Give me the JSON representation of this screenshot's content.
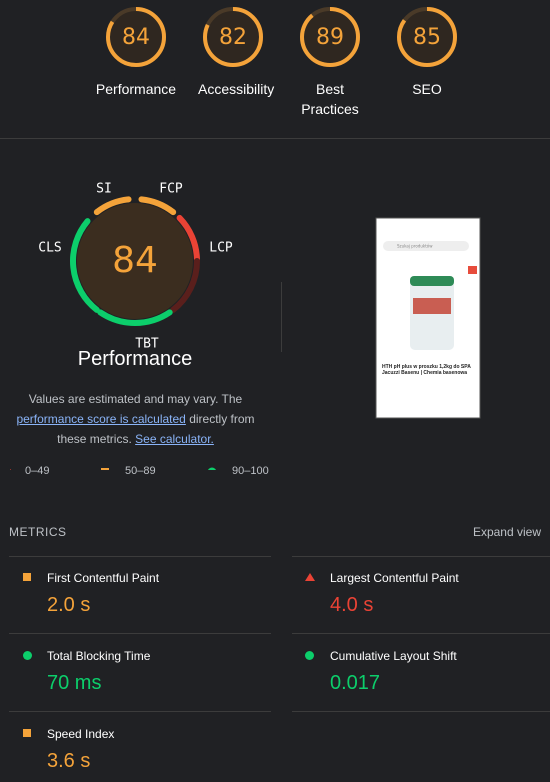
{
  "top_scores": [
    {
      "label": "Performance",
      "score": 84
    },
    {
      "label": "Accessibility",
      "score": 82
    },
    {
      "label": "Best Practices",
      "score": 89
    },
    {
      "label": "SEO",
      "score": 85
    }
  ],
  "gauge": {
    "score": 84,
    "title": "Performance",
    "labels": {
      "si": "SI",
      "fcp": "FCP",
      "lcp": "LCP",
      "cls": "CLS",
      "tbt": "TBT"
    }
  },
  "note": {
    "text1": "Values are estimated and may vary. The",
    "link1": "performance score is calculated",
    "text2": "directly from these metrics.",
    "link2": "See calculator."
  },
  "legend": [
    "0–49",
    "50–89",
    "90–100"
  ],
  "screenshot": {
    "search": "Szukaj produktów",
    "product": "HTH pH plus w proszku 1,2kg do SPA Jacuzzi Basenu | Chemia basenowa"
  },
  "metrics": {
    "heading": "METRICS",
    "expand": "Expand view",
    "items": [
      {
        "name": "First Contentful Paint",
        "value": "2.0 s"
      },
      {
        "name": "Largest Contentful Paint",
        "value": "4.0 s"
      },
      {
        "name": "Total Blocking Time",
        "value": "70 ms"
      },
      {
        "name": "Cumulative Layout Shift",
        "value": "0.017"
      },
      {
        "name": "Speed Index",
        "value": "3.6 s"
      }
    ]
  }
}
